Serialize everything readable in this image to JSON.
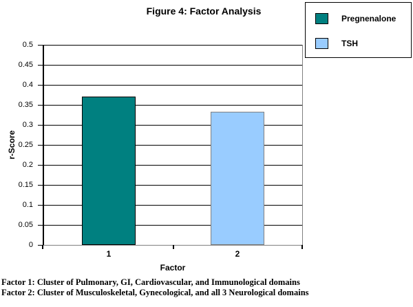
{
  "chart_data": {
    "type": "bar",
    "title": "Figure 4: Factor Analysis",
    "xlabel": "Factor",
    "ylabel": "r-Score",
    "ylim": [
      0,
      0.5
    ],
    "yticks": [
      0,
      0.05,
      0.1,
      0.15,
      0.2,
      0.25,
      0.3,
      0.35,
      0.4,
      0.45,
      0.5
    ],
    "categories": [
      "1",
      "2"
    ],
    "series": [
      {
        "name": "Pregnenalone",
        "color": "#008080",
        "border_color": "#000000",
        "values": [
          0.37,
          null
        ]
      },
      {
        "name": "TSH",
        "color": "#99CCFF",
        "border_color": "#808080",
        "values": [
          null,
          0.333
        ]
      }
    ],
    "grid": true,
    "legend_position": "top-right"
  },
  "footnotes": [
    "Factor 1: Cluster of Pulmonary, GI, Cardiovascular, and Immunological domains",
    "Factor 2: Cluster of Musculoskeletal, Gynecological, and all 3 Neurological domains"
  ],
  "colors": {
    "pregnenalone_fill": "#008080",
    "tsh_fill": "#99CCFF",
    "gridline": "#000000",
    "axis_secondary": "#808080",
    "background": "#ffffff"
  }
}
